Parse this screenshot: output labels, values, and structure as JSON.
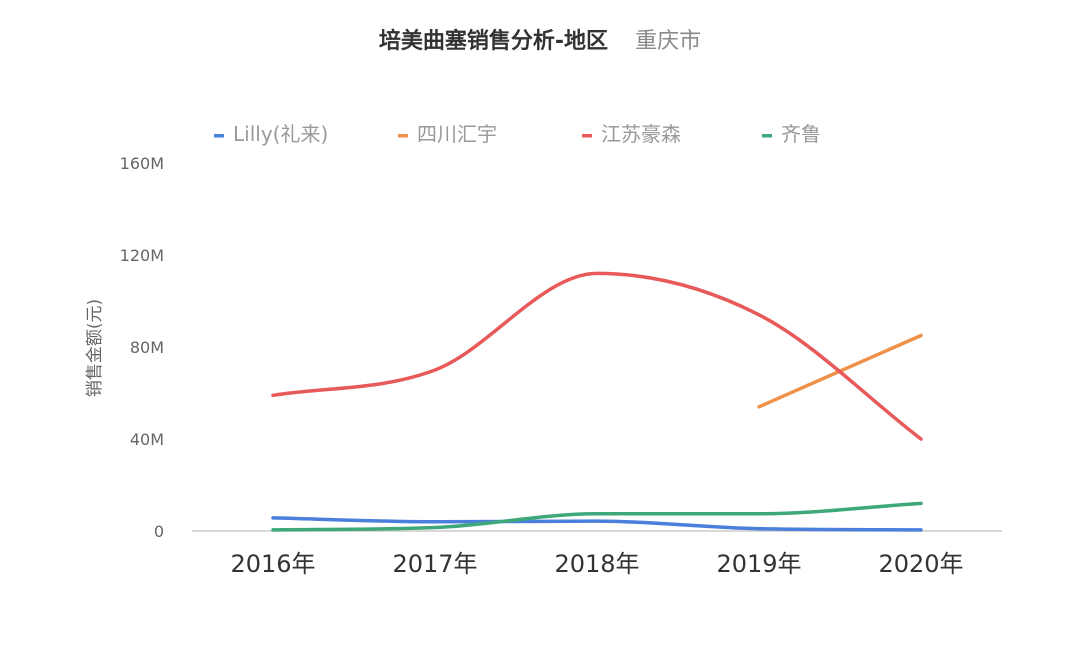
{
  "chart_data": {
    "type": "line",
    "title": "培美曲塞销售分析-地区",
    "subtitle": "重庆市",
    "ylabel": "销售金额(元)",
    "xlabel": "",
    "categories": [
      "2016年",
      "2017年",
      "2018年",
      "2019年",
      "2020年"
    ],
    "ylim": [
      0,
      160
    ],
    "yticks": [
      0,
      40,
      80,
      120,
      160
    ],
    "ytick_labels": [
      "0",
      "40M",
      "80M",
      "120M",
      "160M"
    ],
    "legend_position": "top",
    "series": [
      {
        "name": "Lilly(礼来)",
        "color": "#4a7fdc",
        "values": [
          5.7,
          4.0,
          4.3,
          1.0,
          0.5
        ]
      },
      {
        "name": "四川汇宇",
        "color": "#f0914a",
        "values": [
          null,
          null,
          null,
          54,
          85
        ]
      },
      {
        "name": "江苏豪森",
        "color": "#e8595a",
        "values": [
          59,
          70,
          112,
          94,
          40
        ]
      },
      {
        "name": "齐鲁",
        "color": "#3ea87a",
        "values": [
          0.5,
          1.5,
          7.5,
          7.5,
          12
        ]
      }
    ]
  }
}
